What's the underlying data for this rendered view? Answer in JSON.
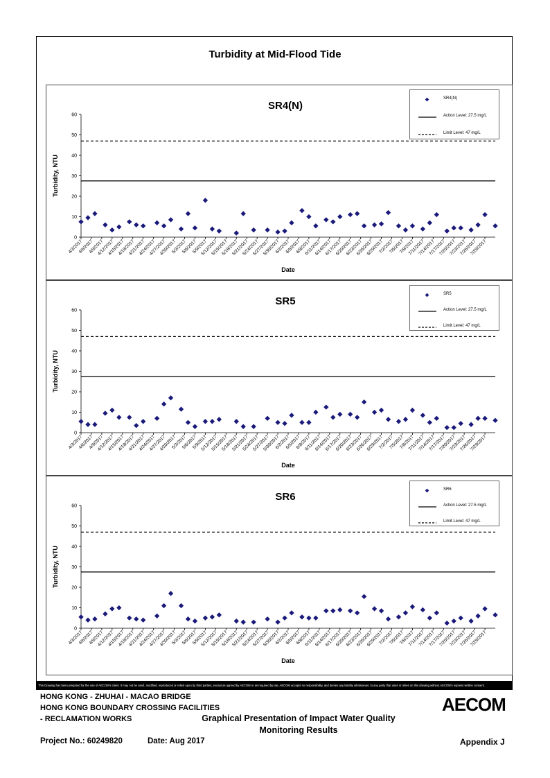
{
  "page": {
    "title": "Turbidity at Mid-Flood Tide",
    "disclaimer": "This Drawing has been prepared for the use of AECOM's client. It may not be used, modified, reproduced or relied upon by third parties, except as agreed by AECOM or as required by law. AECOM accepts no responsibility, and denies any liability whatsoever, to any party that uses or relies on this drawing without AECOM's express written consent.",
    "footer": {
      "line1": "HONG KONG - ZHUHAI - MACAO BRIDGE",
      "line2": "HONG KONG BOUNDARY CROSSING FACILITIES",
      "line3": "- RECLAMATION WORKS",
      "heading1": "Graphical Presentation of Impact Water Quality",
      "heading2": "Monitoring Results",
      "project": "Project No.: 60249820",
      "date": "Date: Aug 2017",
      "appendix": "Appendix J",
      "logo": "AECOM"
    }
  },
  "colors": {
    "marker": "#1a1a7a",
    "line": "#000000",
    "border": "#444444"
  },
  "chart_data": [
    {
      "type": "scatter",
      "title": "SR4(N)",
      "xlabel": "Date",
      "ylabel": "Turbidity, NTU",
      "ylim": [
        0,
        60
      ],
      "yticks": [
        0,
        10,
        20,
        30,
        40,
        50,
        60
      ],
      "xticks": [
        "4/3/2017",
        "4/6/2017",
        "4/9/2017",
        "4/12/2017",
        "4/15/2017",
        "4/18/2017",
        "4/21/2017",
        "4/24/2017",
        "4/27/2017",
        "4/30/2017",
        "5/3/2017",
        "5/6/2017",
        "5/9/2017",
        "5/12/2017",
        "5/15/2017",
        "5/18/2017",
        "5/21/2017",
        "5/24/2017",
        "5/27/2017",
        "5/30/2017",
        "6/2/2017",
        "6/5/2017",
        "6/8/2017",
        "6/11/2017",
        "6/14/2017",
        "6/17/2017",
        "6/20/2017",
        "6/23/2017",
        "6/26/2017",
        "6/29/2017",
        "7/2/2017",
        "7/5/2017",
        "7/8/2017",
        "7/11/2017",
        "7/14/2017",
        "7/17/2017",
        "7/20/2017",
        "7/23/2017",
        "7/26/2017",
        "7/29/2017"
      ],
      "legend": {
        "series": "SR4(N)",
        "action": "Action Level: 27.5 mg/L",
        "limit": "Limit Level: 47 mg/L"
      },
      "action_level": 27.5,
      "limit_level": 47,
      "series": [
        {
          "name": "SR4(N)",
          "points": [
            [
              "4/3/2017",
              7.5
            ],
            [
              "4/5/2017",
              9.5
            ],
            [
              "4/7/2017",
              11.5
            ],
            [
              "4/10/2017",
              6
            ],
            [
              "4/12/2017",
              3.5
            ],
            [
              "4/14/2017",
              5
            ],
            [
              "4/17/2017",
              7.5
            ],
            [
              "4/19/2017",
              6
            ],
            [
              "4/21/2017",
              5.5
            ],
            [
              "4/25/2017",
              7
            ],
            [
              "4/27/2017",
              5.5
            ],
            [
              "4/29/2017",
              8.5
            ],
            [
              "5/2/2017",
              4
            ],
            [
              "5/4/2017",
              11.5
            ],
            [
              "5/6/2017",
              4.5
            ],
            [
              "5/9/2017",
              18
            ],
            [
              "5/11/2017",
              4
            ],
            [
              "5/13/2017",
              3
            ],
            [
              "5/18/2017",
              2
            ],
            [
              "5/20/2017",
              11.5
            ],
            [
              "5/23/2017",
              3.5
            ],
            [
              "5/27/2017",
              3.5
            ],
            [
              "5/30/2017",
              2.5
            ],
            [
              "6/1/2017",
              3
            ],
            [
              "6/3/2017",
              7
            ],
            [
              "6/6/2017",
              13
            ],
            [
              "6/8/2017",
              10
            ],
            [
              "6/10/2017",
              5.5
            ],
            [
              "6/13/2017",
              8.5
            ],
            [
              "6/15/2017",
              7.5
            ],
            [
              "6/17/2017",
              10
            ],
            [
              "6/20/2017",
              11
            ],
            [
              "6/22/2017",
              11.5
            ],
            [
              "6/24/2017",
              5.5
            ],
            [
              "6/27/2017",
              6
            ],
            [
              "6/29/2017",
              6.5
            ],
            [
              "7/1/2017",
              12
            ],
            [
              "7/4/2017",
              5.5
            ],
            [
              "7/6/2017",
              3.5
            ],
            [
              "7/8/2017",
              5.5
            ],
            [
              "7/11/2017",
              4
            ],
            [
              "7/13/2017",
              7
            ],
            [
              "7/15/2017",
              11
            ],
            [
              "7/18/2017",
              3
            ],
            [
              "7/20/2017",
              4.5
            ],
            [
              "7/22/2017",
              4.5
            ],
            [
              "7/25/2017",
              3.5
            ],
            [
              "7/27/2017",
              6
            ],
            [
              "7/29/2017",
              11
            ],
            [
              "8/1/2017",
              5.5
            ]
          ]
        }
      ]
    },
    {
      "type": "scatter",
      "title": "SR5",
      "xlabel": "Date",
      "ylabel": "Turbidity, NTU",
      "ylim": [
        0,
        60
      ],
      "yticks": [
        0,
        10,
        20,
        30,
        40,
        50,
        60
      ],
      "xticks": [
        "4/3/2017",
        "4/6/2017",
        "4/9/2017",
        "4/12/2017",
        "4/15/2017",
        "4/18/2017",
        "4/21/2017",
        "4/24/2017",
        "4/27/2017",
        "4/30/2017",
        "5/3/2017",
        "5/6/2017",
        "5/9/2017",
        "5/12/2017",
        "5/15/2017",
        "5/18/2017",
        "5/21/2017",
        "5/24/2017",
        "5/27/2017",
        "5/30/2017",
        "6/2/2017",
        "6/5/2017",
        "6/8/2017",
        "6/11/2017",
        "6/14/2017",
        "6/17/2017",
        "6/20/2017",
        "6/23/2017",
        "6/26/2017",
        "6/29/2017",
        "7/2/2017",
        "7/5/2017",
        "7/8/2017",
        "7/11/2017",
        "7/14/2017",
        "7/17/2017",
        "7/20/2017",
        "7/23/2017",
        "7/26/2017",
        "7/29/2017"
      ],
      "legend": {
        "series": "SR5",
        "action": "Action Level: 27.5 mg/L",
        "limit": "Limit Level: 47 mg/L"
      },
      "action_level": 27.5,
      "limit_level": 47,
      "series": [
        {
          "name": "SR5",
          "points": [
            [
              "4/3/2017",
              5.5
            ],
            [
              "4/5/2017",
              4
            ],
            [
              "4/7/2017",
              4
            ],
            [
              "4/10/2017",
              9.5
            ],
            [
              "4/12/2017",
              11
            ],
            [
              "4/14/2017",
              7.5
            ],
            [
              "4/17/2017",
              7.5
            ],
            [
              "4/19/2017",
              3.5
            ],
            [
              "4/21/2017",
              5.5
            ],
            [
              "4/25/2017",
              7
            ],
            [
              "4/27/2017",
              14
            ],
            [
              "4/29/2017",
              17
            ],
            [
              "5/2/2017",
              11.5
            ],
            [
              "5/4/2017",
              5
            ],
            [
              "5/6/2017",
              3
            ],
            [
              "5/9/2017",
              5.5
            ],
            [
              "5/11/2017",
              5.5
            ],
            [
              "5/13/2017",
              6.5
            ],
            [
              "5/18/2017",
              5.5
            ],
            [
              "5/20/2017",
              3
            ],
            [
              "5/23/2017",
              3
            ],
            [
              "5/27/2017",
              7
            ],
            [
              "5/30/2017",
              5
            ],
            [
              "6/1/2017",
              4.5
            ],
            [
              "6/3/2017",
              8.5
            ],
            [
              "6/6/2017",
              5
            ],
            [
              "6/8/2017",
              5
            ],
            [
              "6/10/2017",
              10
            ],
            [
              "6/13/2017",
              12.5
            ],
            [
              "6/15/2017",
              7.5
            ],
            [
              "6/17/2017",
              9
            ],
            [
              "6/20/2017",
              9
            ],
            [
              "6/22/2017",
              7.5
            ],
            [
              "6/24/2017",
              15
            ],
            [
              "6/27/2017",
              10
            ],
            [
              "6/29/2017",
              11
            ],
            [
              "7/1/2017",
              6.5
            ],
            [
              "7/4/2017",
              5.5
            ],
            [
              "7/6/2017",
              6.5
            ],
            [
              "7/8/2017",
              11
            ],
            [
              "7/11/2017",
              8.5
            ],
            [
              "7/13/2017",
              5
            ],
            [
              "7/15/2017",
              7
            ],
            [
              "7/18/2017",
              2.5
            ],
            [
              "7/20/2017",
              2.5
            ],
            [
              "7/22/2017",
              4.5
            ],
            [
              "7/25/2017",
              4
            ],
            [
              "7/27/2017",
              7
            ],
            [
              "7/29/2017",
              7
            ],
            [
              "8/1/2017",
              6
            ]
          ]
        }
      ]
    },
    {
      "type": "scatter",
      "title": "SR6",
      "xlabel": "Date",
      "ylabel": "Turbidity, NTU",
      "ylim": [
        0,
        60
      ],
      "yticks": [
        0,
        10,
        20,
        30,
        40,
        50,
        60
      ],
      "xticks": [
        "4/3/2017",
        "4/6/2017",
        "4/9/2017",
        "4/12/2017",
        "4/15/2017",
        "4/18/2017",
        "4/21/2017",
        "4/24/2017",
        "4/27/2017",
        "4/30/2017",
        "5/3/2017",
        "5/6/2017",
        "5/9/2017",
        "5/12/2017",
        "5/15/2017",
        "5/18/2017",
        "5/21/2017",
        "5/24/2017",
        "5/27/2017",
        "5/30/2017",
        "6/2/2017",
        "6/5/2017",
        "6/8/2017",
        "6/11/2017",
        "6/14/2017",
        "6/17/2017",
        "6/20/2017",
        "6/23/2017",
        "6/26/2017",
        "6/29/2017",
        "7/2/2017",
        "7/5/2017",
        "7/8/2017",
        "7/11/2017",
        "7/14/2017",
        "7/17/2017",
        "7/20/2017",
        "7/23/2017",
        "7/26/2017",
        "7/29/2017"
      ],
      "legend": {
        "series": "SR6",
        "action": "Action Level: 27.5 mg/L",
        "limit": "Limit Level: 47 mg/L"
      },
      "action_level": 27.5,
      "limit_level": 47,
      "series": [
        {
          "name": "SR6",
          "points": [
            [
              "4/3/2017",
              5.5
            ],
            [
              "4/5/2017",
              4
            ],
            [
              "4/7/2017",
              4.5
            ],
            [
              "4/10/2017",
              7
            ],
            [
              "4/12/2017",
              9.5
            ],
            [
              "4/14/2017",
              10
            ],
            [
              "4/17/2017",
              5
            ],
            [
              "4/19/2017",
              4.5
            ],
            [
              "4/21/2017",
              4
            ],
            [
              "4/25/2017",
              6
            ],
            [
              "4/27/2017",
              11
            ],
            [
              "4/29/2017",
              17
            ],
            [
              "5/2/2017",
              11
            ],
            [
              "5/4/2017",
              4.5
            ],
            [
              "5/6/2017",
              3.5
            ],
            [
              "5/9/2017",
              5
            ],
            [
              "5/11/2017",
              5.5
            ],
            [
              "5/13/2017",
              6.5
            ],
            [
              "5/18/2017",
              3.5
            ],
            [
              "5/20/2017",
              3
            ],
            [
              "5/23/2017",
              3
            ],
            [
              "5/27/2017",
              4.5
            ],
            [
              "5/30/2017",
              3
            ],
            [
              "6/1/2017",
              5
            ],
            [
              "6/3/2017",
              7.5
            ],
            [
              "6/6/2017",
              5.5
            ],
            [
              "6/8/2017",
              5
            ],
            [
              "6/10/2017",
              5
            ],
            [
              "6/13/2017",
              8.5
            ],
            [
              "6/15/2017",
              8.5
            ],
            [
              "6/17/2017",
              9
            ],
            [
              "6/20/2017",
              8.5
            ],
            [
              "6/22/2017",
              7.5
            ],
            [
              "6/24/2017",
              15.5
            ],
            [
              "6/27/2017",
              9.5
            ],
            [
              "6/29/2017",
              8.5
            ],
            [
              "7/1/2017",
              4.5
            ],
            [
              "7/4/2017",
              5.5
            ],
            [
              "7/6/2017",
              7.5
            ],
            [
              "7/8/2017",
              10.5
            ],
            [
              "7/11/2017",
              9
            ],
            [
              "7/13/2017",
              5
            ],
            [
              "7/15/2017",
              7.5
            ],
            [
              "7/18/2017",
              2.5
            ],
            [
              "7/20/2017",
              3.5
            ],
            [
              "7/22/2017",
              5
            ],
            [
              "7/25/2017",
              3.5
            ],
            [
              "7/27/2017",
              6
            ],
            [
              "7/29/2017",
              9.5
            ],
            [
              "8/1/2017",
              6.5
            ]
          ]
        }
      ]
    }
  ]
}
